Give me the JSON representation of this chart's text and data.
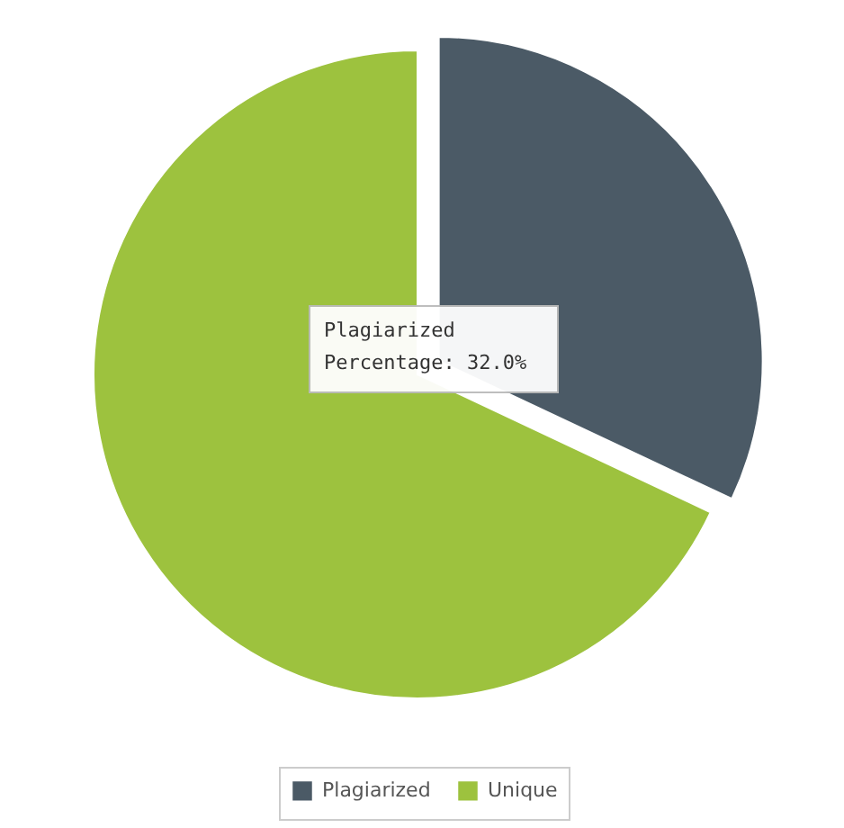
{
  "chart_data": {
    "type": "pie",
    "categories": [
      "Plagiarized",
      "Unique"
    ],
    "values": [
      32,
      68
    ],
    "colors": [
      "#4b5a66",
      "#9dc23e"
    ],
    "annotations": [
      "Plagiarized\nPercentage: 32.0%"
    ],
    "legend": "bottom"
  }
}
